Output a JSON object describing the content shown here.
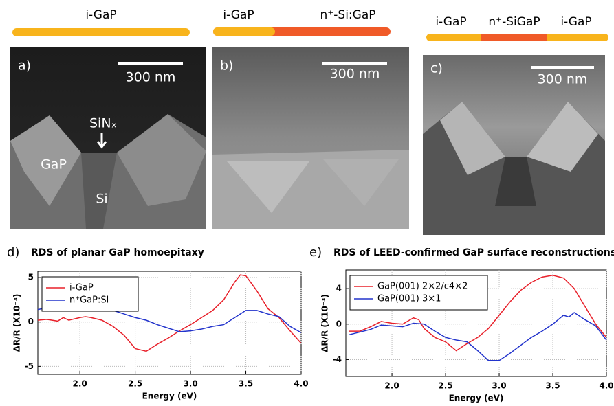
{
  "figure": {
    "panel_a": {
      "bar_labels": [
        "i-GaP"
      ],
      "letter": "a)",
      "scale": "300 nm",
      "labels": [
        "SiNₓ",
        "GaP",
        "Si"
      ]
    },
    "panel_b": {
      "bar_labels": [
        "i-GaP",
        "n⁺-Si:GaP"
      ],
      "letter": "b)",
      "scale": "300 nm"
    },
    "panel_c": {
      "bar_labels": [
        "i-GaP",
        "n⁺-SiGaP",
        "i-GaP"
      ],
      "letter": "c)",
      "scale": "300 nm"
    }
  },
  "chart_data": [
    {
      "type": "line",
      "label": "d)",
      "title": "RDS of planar GaP homoepitaxy",
      "x_label": "Energy (eV)",
      "y_label": "ΔR/R (X10⁻³)",
      "xlim": [
        1.62,
        4.0
      ],
      "ylim": [
        -5.9,
        5.7
      ],
      "xticks": [
        {
          "value": 2.0,
          "label": "2.0"
        },
        {
          "value": 2.5,
          "label": "2.5"
        },
        {
          "value": 3.0,
          "label": "3.0"
        },
        {
          "value": 3.5,
          "label": "3.5"
        },
        {
          "value": 4.0,
          "label": "4.0"
        }
      ],
      "yticks": [
        -5,
        0,
        5
      ],
      "grid": true,
      "legend": "upper left",
      "series": [
        {
          "name": "i-GaP",
          "color": "#e8202a",
          "x": [
            1.62,
            1.7,
            1.8,
            1.85,
            1.9,
            2.0,
            2.05,
            2.1,
            2.2,
            2.3,
            2.4,
            2.5,
            2.6,
            2.7,
            2.8,
            2.9,
            3.0,
            3.1,
            3.2,
            3.3,
            3.4,
            3.45,
            3.5,
            3.6,
            3.7,
            3.8,
            3.9,
            4.0
          ],
          "values": [
            0.2,
            0.3,
            0.1,
            0.5,
            0.2,
            0.5,
            0.6,
            0.5,
            0.2,
            -0.5,
            -1.5,
            -3.0,
            -3.3,
            -2.5,
            -1.8,
            -1.0,
            -0.3,
            0.5,
            1.3,
            2.5,
            4.5,
            5.3,
            5.2,
            3.5,
            1.5,
            0.5,
            -1.0,
            -2.4
          ]
        },
        {
          "name": "n⁺GaP:Si",
          "color": "#2233cc",
          "x": [
            1.62,
            1.7,
            1.8,
            1.9,
            2.0,
            2.1,
            2.2,
            2.3,
            2.4,
            2.5,
            2.6,
            2.7,
            2.8,
            2.9,
            3.0,
            3.1,
            3.2,
            3.3,
            3.4,
            3.5,
            3.6,
            3.7,
            3.8,
            3.9,
            4.0
          ],
          "values": [
            1.4,
            1.6,
            1.8,
            1.8,
            2.0,
            1.8,
            1.6,
            1.3,
            0.9,
            0.5,
            0.2,
            -0.3,
            -0.7,
            -1.1,
            -1.0,
            -0.8,
            -0.5,
            -0.3,
            0.5,
            1.3,
            1.3,
            0.9,
            0.6,
            -0.5,
            -1.2
          ]
        }
      ]
    },
    {
      "type": "line",
      "label": "e)",
      "title": "RDS of LEED-confirmed GaP surface reconstructions",
      "x_label": "Energy (eV)",
      "y_label": "ΔR/R (X10⁻³)",
      "xlim": [
        1.57,
        4.0
      ],
      "ylim": [
        -5.9,
        6.1
      ],
      "xticks": [
        {
          "value": 2.0,
          "label": "2.0"
        },
        {
          "value": 2.5,
          "label": "2.5"
        },
        {
          "value": 3.0,
          "label": "3.0"
        },
        {
          "value": 3.5,
          "label": "3.5"
        },
        {
          "value": 4.0,
          "label": "4.0"
        }
      ],
      "yticks": [
        -4,
        0,
        4
      ],
      "grid": true,
      "legend": "upper left",
      "series": [
        {
          "name": "GaP(001) 2×2/c4×2",
          "color": "#e8202a",
          "x": [
            1.6,
            1.7,
            1.8,
            1.9,
            2.0,
            2.1,
            2.2,
            2.25,
            2.3,
            2.4,
            2.5,
            2.6,
            2.65,
            2.7,
            2.8,
            2.9,
            3.0,
            3.1,
            3.2,
            3.3,
            3.4,
            3.5,
            3.6,
            3.7,
            3.8,
            3.9,
            4.0
          ],
          "values": [
            -0.8,
            -0.8,
            -0.3,
            0.3,
            0.1,
            0.0,
            0.7,
            0.5,
            -0.5,
            -1.5,
            -2.0,
            -3.0,
            -2.6,
            -2.2,
            -1.5,
            -0.5,
            1.0,
            2.5,
            3.8,
            4.7,
            5.3,
            5.5,
            5.2,
            4.0,
            2.0,
            0.0,
            -1.5
          ]
        },
        {
          "name": "GaP(001) 3×1",
          "color": "#2233cc",
          "x": [
            1.6,
            1.7,
            1.8,
            1.9,
            2.0,
            2.1,
            2.2,
            2.3,
            2.4,
            2.5,
            2.6,
            2.7,
            2.8,
            2.9,
            3.0,
            3.1,
            3.2,
            3.3,
            3.4,
            3.5,
            3.6,
            3.65,
            3.7,
            3.8,
            3.9,
            4.0
          ],
          "values": [
            -1.2,
            -0.9,
            -0.6,
            -0.1,
            -0.2,
            -0.3,
            0.1,
            0.0,
            -0.8,
            -1.5,
            -1.8,
            -2.0,
            -3.0,
            -4.1,
            -4.1,
            -3.3,
            -2.4,
            -1.5,
            -0.8,
            0.0,
            1.0,
            0.8,
            1.3,
            0.5,
            -0.2,
            -1.8
          ]
        }
      ]
    }
  ]
}
